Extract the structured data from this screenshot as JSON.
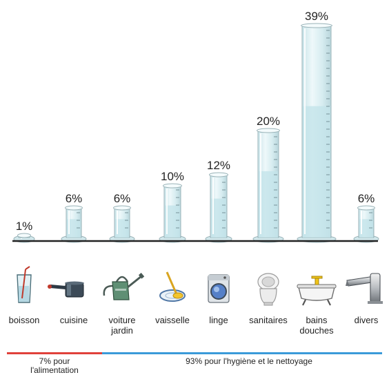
{
  "chart_data": {
    "type": "bar",
    "style": "graduated-cylinders",
    "unit": "%",
    "categories": [
      {
        "label": [
          "boisson"
        ],
        "value": 1,
        "value_label": "1%",
        "icon": "glass-icon"
      },
      {
        "label": [
          "cuisine"
        ],
        "value": 6,
        "value_label": "6%",
        "icon": "cooking-pot-icon"
      },
      {
        "label": [
          "voiture",
          "jardin"
        ],
        "value": 6,
        "value_label": "6%",
        "icon": "watering-can-icon"
      },
      {
        "label": [
          "vaisselle"
        ],
        "value": 10,
        "value_label": "10%",
        "icon": "dish-sponge-icon"
      },
      {
        "label": [
          "linge"
        ],
        "value": 12,
        "value_label": "12%",
        "icon": "washing-machine-icon"
      },
      {
        "label": [
          "sanitaires"
        ],
        "value": 20,
        "value_label": "20%",
        "icon": "toilet-icon"
      },
      {
        "label": [
          "bains",
          "douches"
        ],
        "value": 39,
        "value_label": "39%",
        "icon": "bathtub-icon"
      },
      {
        "label": [
          "divers"
        ],
        "value": 6,
        "value_label": "6%",
        "icon": "faucet-icon"
      }
    ],
    "ylim": [
      0,
      39
    ],
    "grid": false,
    "legend": "none",
    "groups": [
      {
        "label": [
          "7% pour",
          "l'alimentation"
        ],
        "color": "#e0413a",
        "from": 0,
        "to": 1
      },
      {
        "label": [
          "93% pour l'hygiène et le nettoyage"
        ],
        "color": "#3a9ad9",
        "from": 2,
        "to": 7
      }
    ],
    "colors": {
      "cylinder_fill": "#dceff2",
      "cylinder_edge": "#9ab3b8",
      "water": "#c3e3ea",
      "baseline": "#222222"
    }
  }
}
